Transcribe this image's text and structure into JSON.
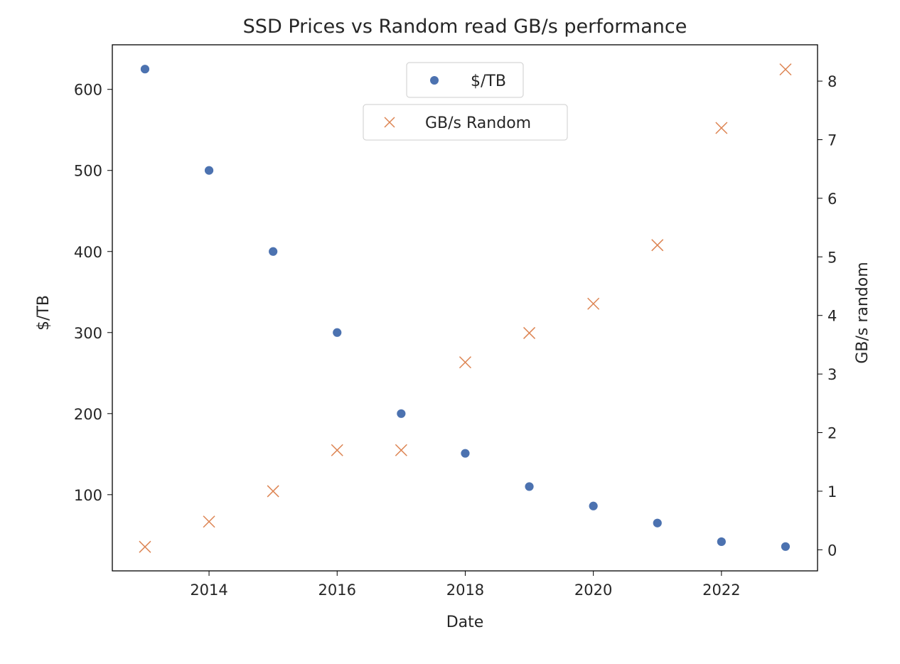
{
  "chart_data": {
    "type": "scatter",
    "title": "SSD Prices vs Random read GB/s performance",
    "xlabel": "Date",
    "ylabel": "$/TB",
    "y2label": "GB/s random",
    "xlim": [
      2012.49,
      2023.5
    ],
    "ylim": [
      6,
      655
    ],
    "y2lim": [
      -0.36,
      8.62
    ],
    "xticks": [
      2014,
      2016,
      2018,
      2020,
      2022
    ],
    "yticks": [
      100,
      200,
      300,
      400,
      500,
      600
    ],
    "y2ticks": [
      0,
      1,
      2,
      3,
      4,
      5,
      6,
      7,
      8
    ],
    "grid": false,
    "x": [
      2013,
      2014,
      2015,
      2016,
      2017,
      2018,
      2019,
      2020,
      2021,
      2022,
      2023
    ],
    "series": [
      {
        "name": "$/TB",
        "axis": "left",
        "marker": "circle",
        "color": "#4c72b0",
        "values": [
          625,
          500,
          400,
          300,
          200,
          151,
          110,
          86,
          65,
          42,
          36
        ]
      },
      {
        "name": "GB/s Random",
        "axis": "right",
        "marker": "x",
        "color": "#dd8452",
        "values": [
          0.05,
          0.48,
          1.0,
          1.7,
          1.7,
          3.2,
          3.7,
          4.2,
          5.2,
          7.2,
          8.2
        ]
      }
    ],
    "legend": [
      {
        "label": "$/TB",
        "placement": "top-center"
      },
      {
        "label": "GB/s Random",
        "placement": "top-center"
      }
    ]
  }
}
